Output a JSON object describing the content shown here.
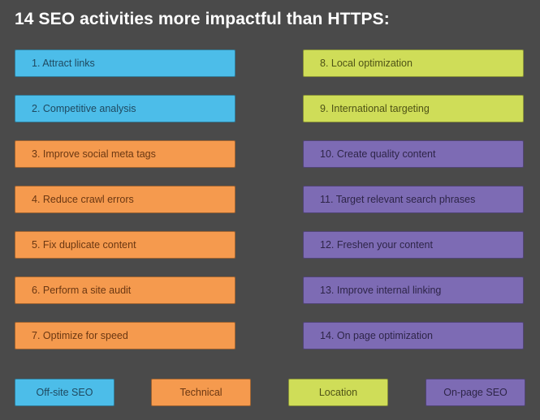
{
  "title": "14 SEO activities more impactful than HTTPS:",
  "colors": {
    "offsite": "#4cbde9",
    "technical": "#f59a4e",
    "location": "#cfdd58",
    "onpage": "#7d6bb4",
    "background": "#4a4a4a"
  },
  "left_column": [
    {
      "label": "1. Attract links",
      "category": "offsite"
    },
    {
      "label": "2. Competitive analysis",
      "category": "offsite"
    },
    {
      "label": "3. Improve social meta tags",
      "category": "technical"
    },
    {
      "label": "4. Reduce crawl errors",
      "category": "technical"
    },
    {
      "label": "5. Fix duplicate content",
      "category": "technical"
    },
    {
      "label": "6. Perform a site audit",
      "category": "technical"
    },
    {
      "label": "7. Optimize for speed",
      "category": "technical"
    }
  ],
  "right_column": [
    {
      "label": "8. Local optimization",
      "category": "location"
    },
    {
      "label": "9. International targeting",
      "category": "location"
    },
    {
      "label": "10. Create quality content",
      "category": "onpage"
    },
    {
      "label": "11. Target relevant search phrases",
      "category": "onpage"
    },
    {
      "label": "12. Freshen your content",
      "category": "onpage"
    },
    {
      "label": "13. Improve internal linking",
      "category": "onpage"
    },
    {
      "label": "14. On page optimization",
      "category": "onpage"
    }
  ],
  "legend": [
    {
      "label": "Off-site SEO",
      "category": "offsite"
    },
    {
      "label": "Technical",
      "category": "technical"
    },
    {
      "label": "Location",
      "category": "location"
    },
    {
      "label": "On-page SEO",
      "category": "onpage"
    }
  ]
}
